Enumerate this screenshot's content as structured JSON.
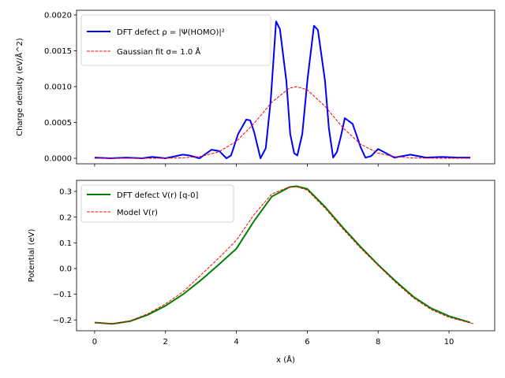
{
  "chart_data": [
    {
      "type": "line",
      "xlabel": "",
      "ylabel": "Charge density (eV/Å^2)",
      "xlim": [
        -0.51,
        11.29
      ],
      "ylim": [
        -7.7e-05,
        0.002066
      ],
      "xticks": [
        0,
        2,
        4,
        6,
        8,
        10
      ],
      "xtick_labels": [
        "",
        "",
        "",
        "",
        "",
        ""
      ],
      "yticks": [
        0,
        0.0005,
        0.001,
        0.0015,
        0.002
      ],
      "ytick_labels": [
        "0.0000",
        "0.0005",
        "0.0010",
        "0.0015",
        "0.0020"
      ],
      "legend_position": "upper-left",
      "series": [
        {
          "name": "DFT defect ρ = |Ψ(HOMO)|²",
          "color": "#0000ff",
          "style": "solid",
          "x": [
            0,
            0.45,
            0.89,
            1.34,
            1.63,
            2.0,
            2.49,
            2.67,
            2.96,
            3.3,
            3.52,
            3.72,
            3.85,
            4.05,
            4.28,
            4.39,
            4.5,
            4.68,
            4.83,
            4.97,
            5.12,
            5.23,
            5.41,
            5.52,
            5.63,
            5.72,
            5.86,
            6.01,
            6.19,
            6.3,
            6.5,
            6.61,
            6.73,
            6.84,
            6.95,
            7.06,
            7.28,
            7.51,
            7.64,
            7.8,
            8.0,
            8.46,
            8.91,
            9.35,
            9.8,
            10.24,
            10.6
          ],
          "y": [
            1e-05,
            0,
            1e-05,
            0,
            2e-05,
            0,
            5e-05,
            4e-05,
            0,
            0.00012,
            0.0001,
            0,
            4e-05,
            0.00034,
            0.00054,
            0.00053,
            0.00037,
            0,
            0.00014,
            0.00081,
            0.00191,
            0.0018,
            0.00108,
            0.00034,
            7e-05,
            4e-05,
            0.00034,
            0.00111,
            0.00185,
            0.00179,
            0.00108,
            0.00042,
            1e-05,
            9e-05,
            0.00031,
            0.00056,
            0.00048,
            0.00015,
            1e-05,
            3e-05,
            0.00013,
            1e-05,
            5e-05,
            1e-05,
            2e-05,
            1e-05,
            1e-05
          ]
        },
        {
          "name": "Gaussian fit σ= 1.0 Å",
          "color": "#ff0000",
          "style": "dashed",
          "x": [
            0,
            0.5,
            1,
            1.5,
            2,
            2.5,
            3,
            3.5,
            4,
            4.5,
            5,
            5.5,
            5.7,
            6,
            6.5,
            7,
            7.5,
            8,
            8.5,
            9,
            9.5,
            10,
            10.6
          ],
          "y": [
            0,
            0,
            0,
            0,
            1e-06,
            6e-06,
            2.6e-05,
            8.9e-05,
            0.000236,
            0.000487,
            0.000783,
            0.00098,
            0.001,
            0.000956,
            0.000726,
            0.00043,
            0.000198,
            7.1e-05,
            2e-05,
            4e-06,
            1e-06,
            0,
            0
          ]
        }
      ]
    },
    {
      "type": "line",
      "xlabel": "x (Å)",
      "ylabel": "Potential (eV)",
      "xlim": [
        -0.51,
        11.29
      ],
      "ylim": [
        -0.242,
        0.343
      ],
      "xticks": [
        0,
        2,
        4,
        6,
        8,
        10
      ],
      "xtick_labels": [
        "0",
        "2",
        "4",
        "6",
        "8",
        "10"
      ],
      "yticks": [
        -0.2,
        -0.1,
        0.0,
        0.1,
        0.2,
        0.3
      ],
      "ytick_labels": [
        "−0.2",
        "−0.1",
        "0.0",
        "0.1",
        "0.2",
        "0.3"
      ],
      "legend_position": "upper-left",
      "series": [
        {
          "name": "DFT defect V(r) [q-0]",
          "color": "#008000",
          "style": "solid",
          "x": [
            0,
            0.5,
            1,
            1.5,
            2,
            2.5,
            3,
            3.5,
            4,
            4.5,
            5,
            5.5,
            5.7,
            6,
            6.5,
            7,
            7.5,
            8,
            8.5,
            9,
            9.5,
            10,
            10.6
          ],
          "y": [
            -0.21,
            -0.215,
            -0.205,
            -0.18,
            -0.145,
            -0.1,
            -0.045,
            0.015,
            0.077,
            0.185,
            0.28,
            0.317,
            0.32,
            0.31,
            0.24,
            0.16,
            0.085,
            0.015,
            -0.05,
            -0.11,
            -0.155,
            -0.185,
            -0.21
          ]
        },
        {
          "name": "Model V(r)",
          "color": "#ff0000",
          "style": "dashed",
          "x": [
            0,
            0.5,
            1,
            1.5,
            2,
            2.5,
            3,
            3.5,
            4,
            4.5,
            5,
            5.5,
            5.7,
            6,
            6.5,
            7,
            7.5,
            8,
            8.5,
            9,
            9.5,
            10,
            10.7
          ],
          "y": [
            -0.21,
            -0.214,
            -0.203,
            -0.176,
            -0.138,
            -0.09,
            -0.025,
            0.04,
            0.11,
            0.21,
            0.29,
            0.318,
            0.318,
            0.305,
            0.235,
            0.155,
            0.08,
            0.012,
            -0.055,
            -0.115,
            -0.16,
            -0.19,
            -0.215
          ]
        }
      ]
    }
  ]
}
